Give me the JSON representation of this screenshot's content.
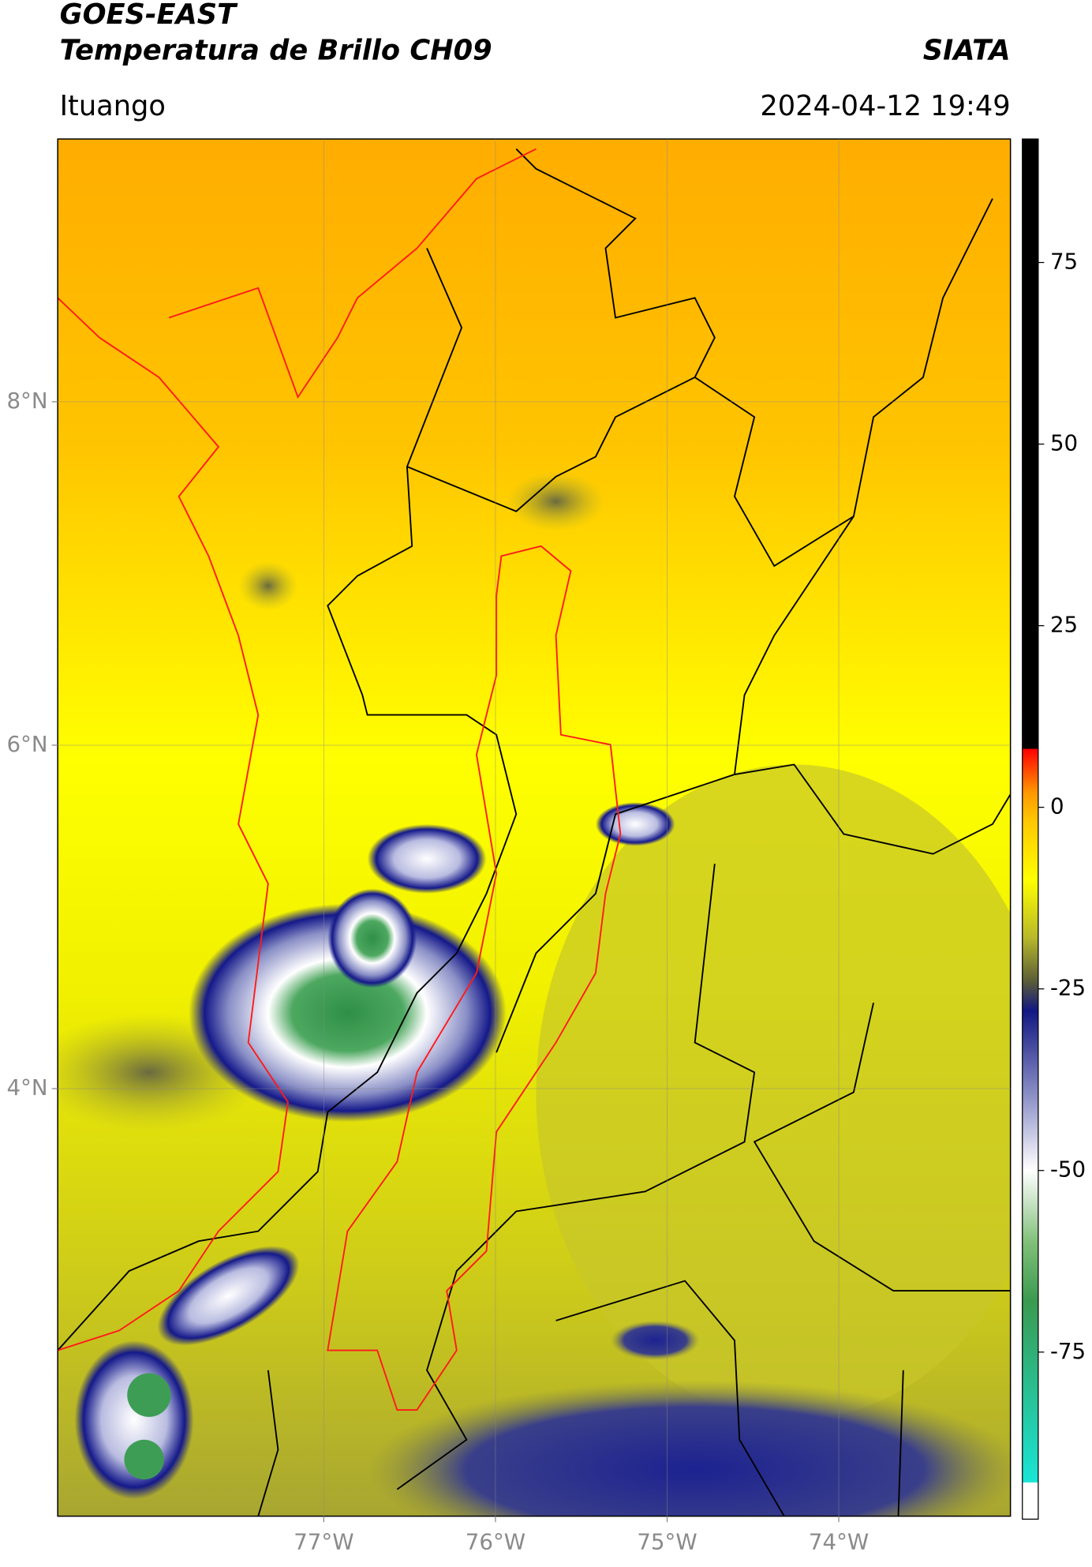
{
  "header": {
    "title": "GOES-EAST",
    "subtitle": "Temperatura de Brillo CH09",
    "brand": "SIATA",
    "location": "Ituango",
    "datetime": "2024-04-12 19:49"
  },
  "map": {
    "xlim": [
      -78.55,
      -73.0
    ],
    "ylim": [
      1.51,
      9.53
    ],
    "xticks": [
      {
        "value": -77,
        "label": "77°W"
      },
      {
        "value": -76,
        "label": "76°W"
      },
      {
        "value": -75,
        "label": "75°W"
      },
      {
        "value": -74,
        "label": "74°W"
      }
    ],
    "yticks": [
      {
        "value": 4,
        "label": "4°N"
      },
      {
        "value": 6,
        "label": "6°N"
      },
      {
        "value": 8,
        "label": "8°N"
      }
    ],
    "grid": true
  },
  "colorbar": {
    "lim": [
      -98,
      92
    ],
    "ticks": [
      -75,
      -50,
      -25,
      0,
      25,
      50,
      75
    ],
    "stops": [
      {
        "value": -98,
        "color": "#ffffff"
      },
      {
        "value": -93,
        "color": "#ffffff"
      },
      {
        "value": -92.9,
        "color": "#19e5d6"
      },
      {
        "value": -68,
        "color": "#3a9a50"
      },
      {
        "value": -60,
        "color": "#7fbf78"
      },
      {
        "value": -50,
        "color": "#ffffff"
      },
      {
        "value": -40,
        "color": "#8f93c8"
      },
      {
        "value": -28,
        "color": "#121883"
      },
      {
        "value": -24,
        "color": "#5a5c38"
      },
      {
        "value": -18,
        "color": "#b7b82a"
      },
      {
        "value": -10,
        "color": "#ffff00"
      },
      {
        "value": -2,
        "color": "#ffc800"
      },
      {
        "value": 2,
        "color": "#ff9900"
      },
      {
        "value": 8,
        "color": "#ff0000"
      },
      {
        "value": 8.1,
        "color": "#000000"
      },
      {
        "value": 92,
        "color": "#000000"
      }
    ]
  }
}
